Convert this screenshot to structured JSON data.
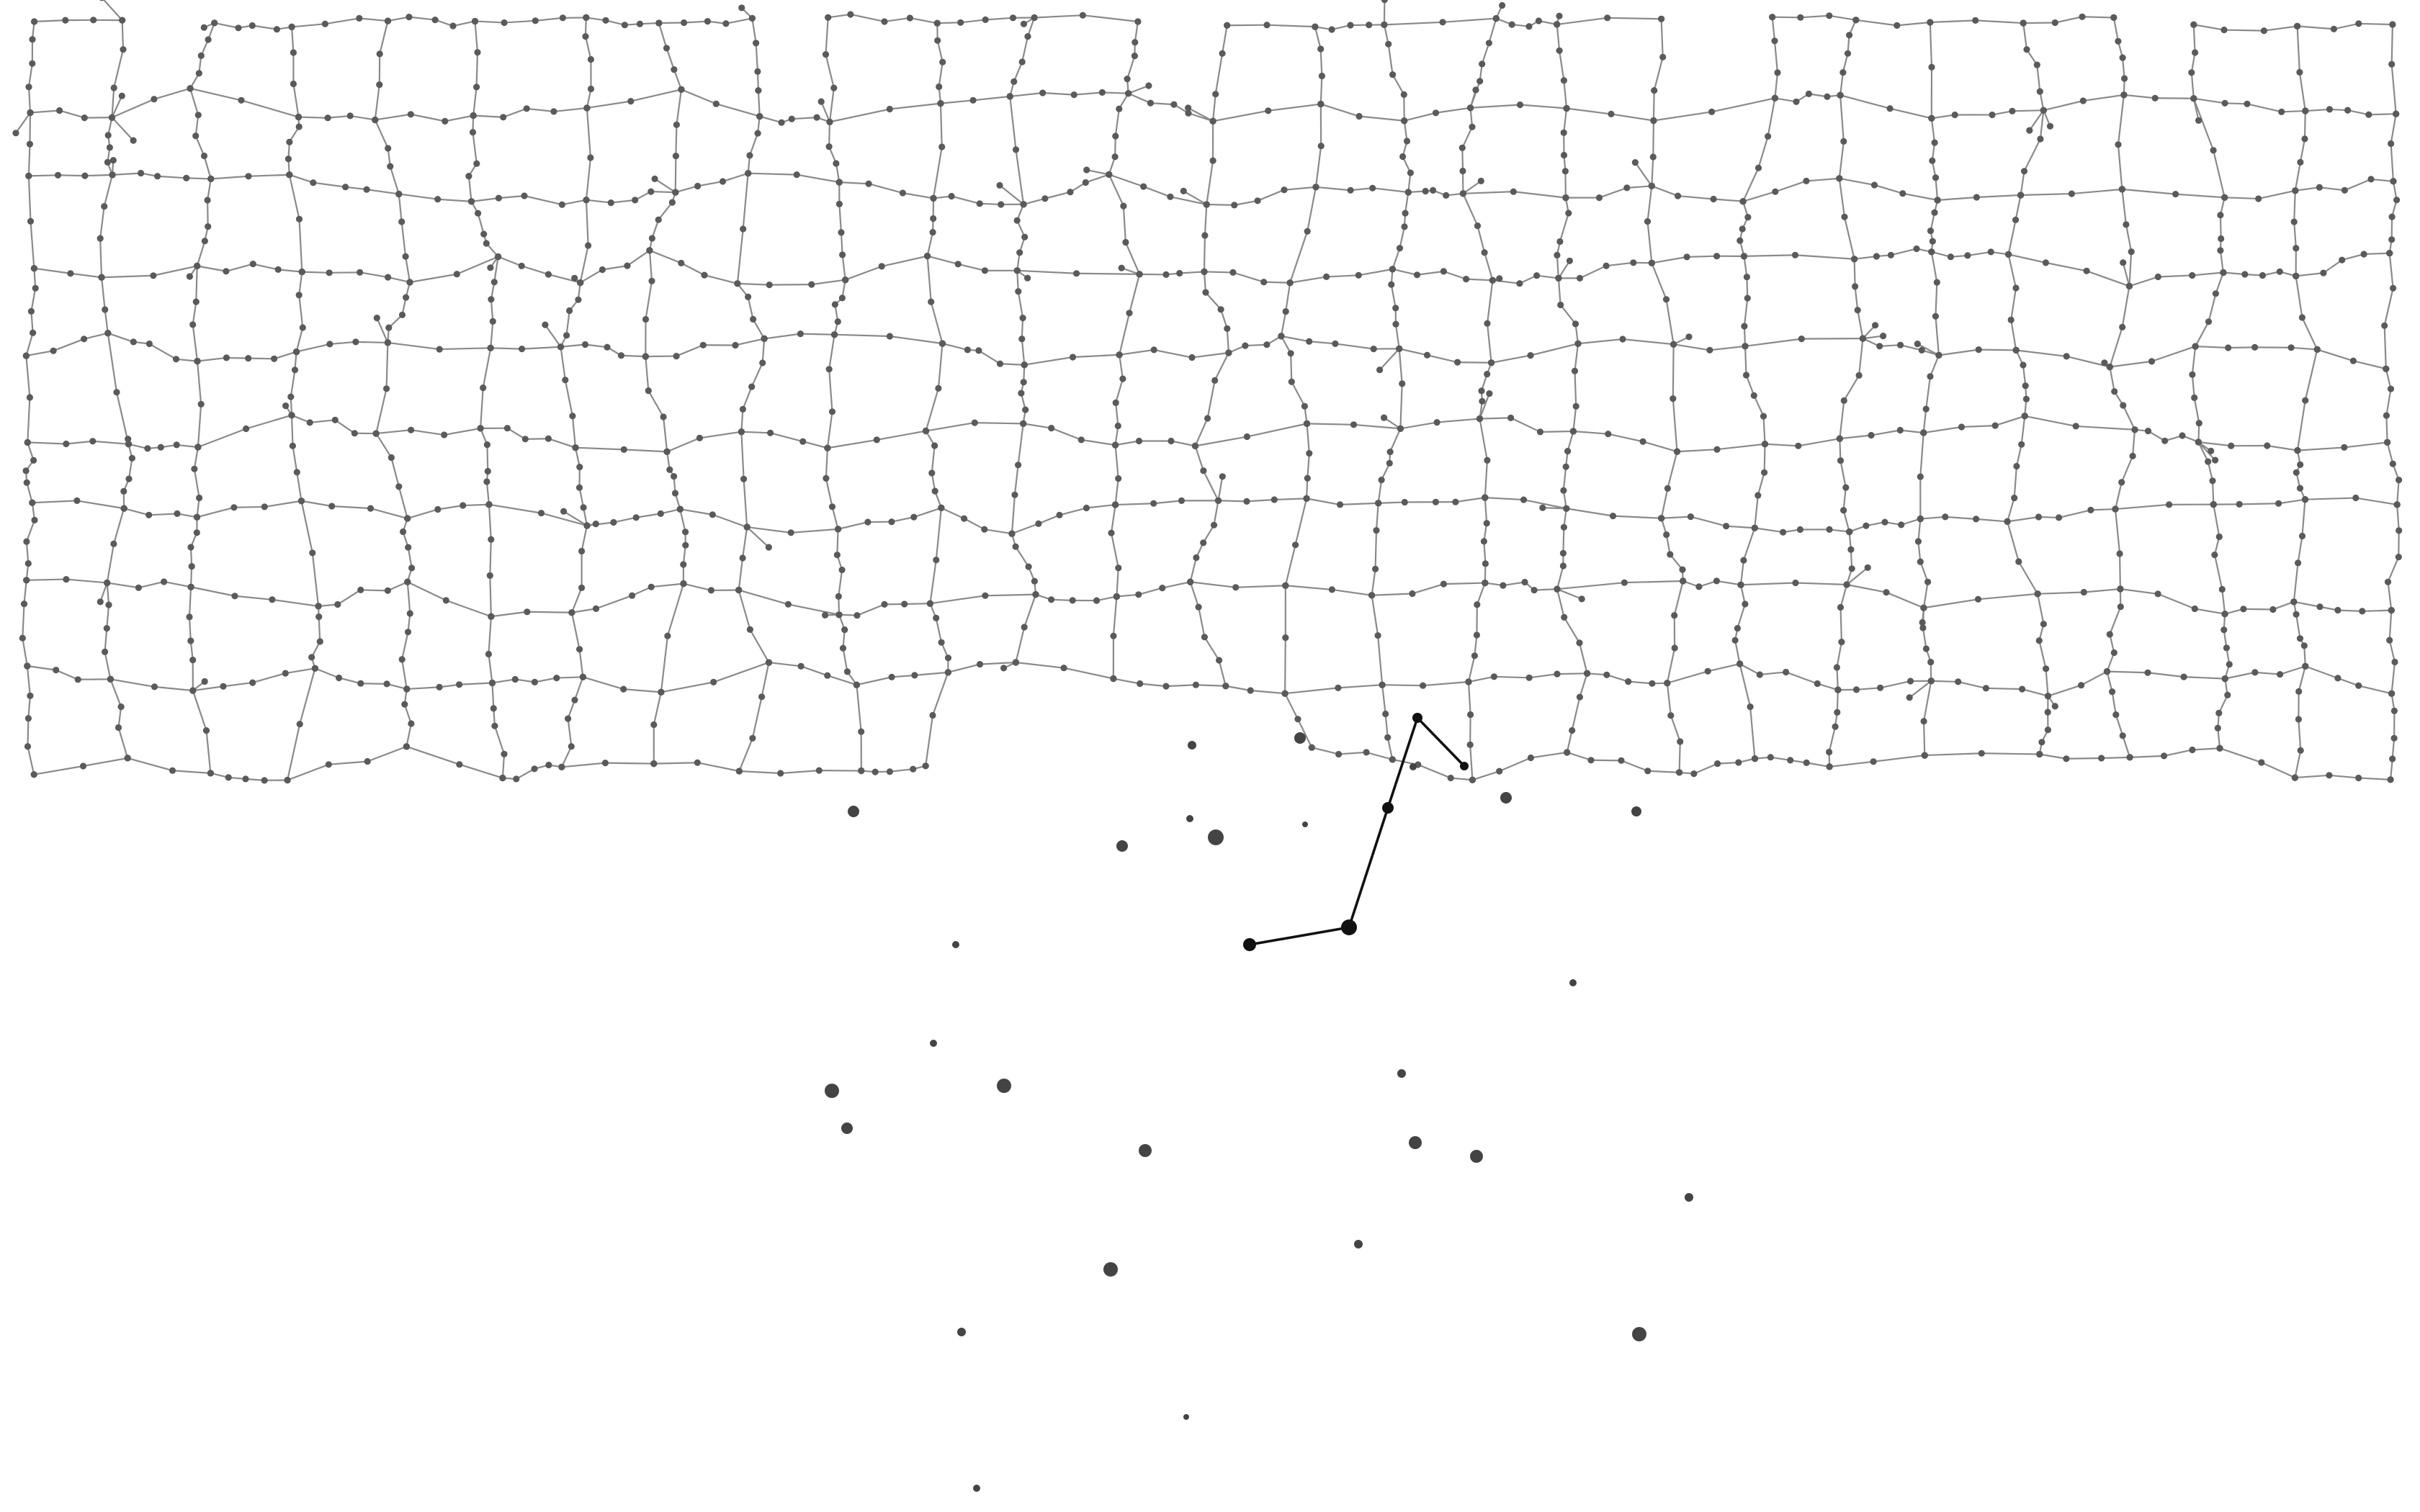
{
  "diagram": {
    "type": "network-graph",
    "background": "#ffffff",
    "mesh_edge_color": "#8a8a8a",
    "mesh_node_color": "#5a5a5a",
    "highlight_color": "#111111",
    "scattered_node_color": "#444444"
  }
}
